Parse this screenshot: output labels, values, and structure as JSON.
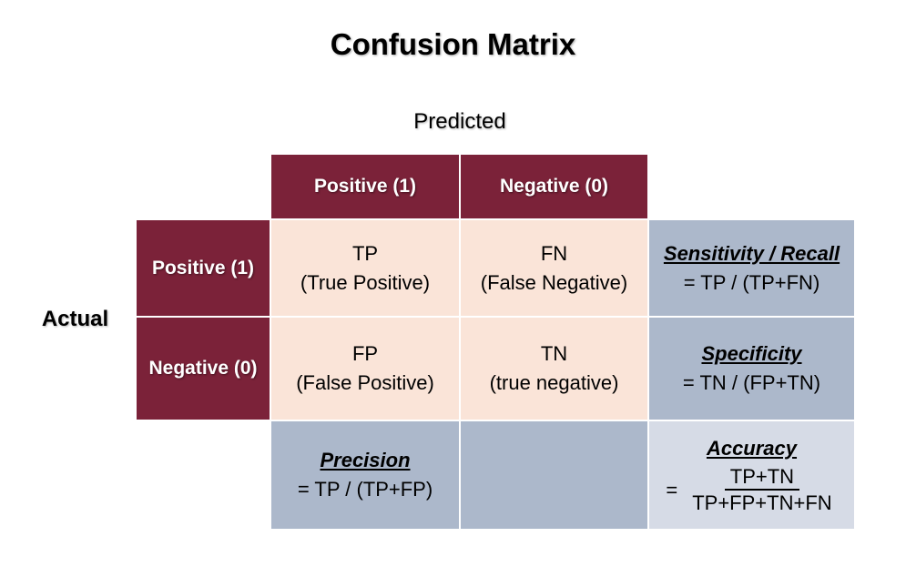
{
  "title": "Confusion Matrix",
  "predicted_label": "Predicted",
  "actual_label": "Actual",
  "column_headers": [
    "Positive (1)",
    "Negative (0)"
  ],
  "row_headers": [
    "Positive (1)",
    "Negative (0)"
  ],
  "cells": {
    "tp": {
      "abbr": "TP",
      "full": "(True Positive)"
    },
    "fn": {
      "abbr": "FN",
      "full": "(False Negative)"
    },
    "fp": {
      "abbr": "FP",
      "full": "(False Positive)"
    },
    "tn": {
      "abbr": "TN",
      "full": "(true negative)"
    }
  },
  "metrics": {
    "sensitivity": {
      "name": "Sensitivity / Recall",
      "formula": "= TP / (TP+FN)"
    },
    "specificity": {
      "name": "Specificity",
      "formula": "= TN / (FP+TN)"
    },
    "precision": {
      "name": "Precision",
      "formula": "= TP / (TP+FP)"
    },
    "accuracy": {
      "name": "Accuracy",
      "equals": "=",
      "numerator": "TP+TN",
      "denominator": "TP+FP+TN+FN"
    }
  },
  "colors": {
    "header": "#7b2239",
    "cell": "#fae4d8",
    "metric": "#acb8cb",
    "metric_light": "#d6dbe6"
  }
}
